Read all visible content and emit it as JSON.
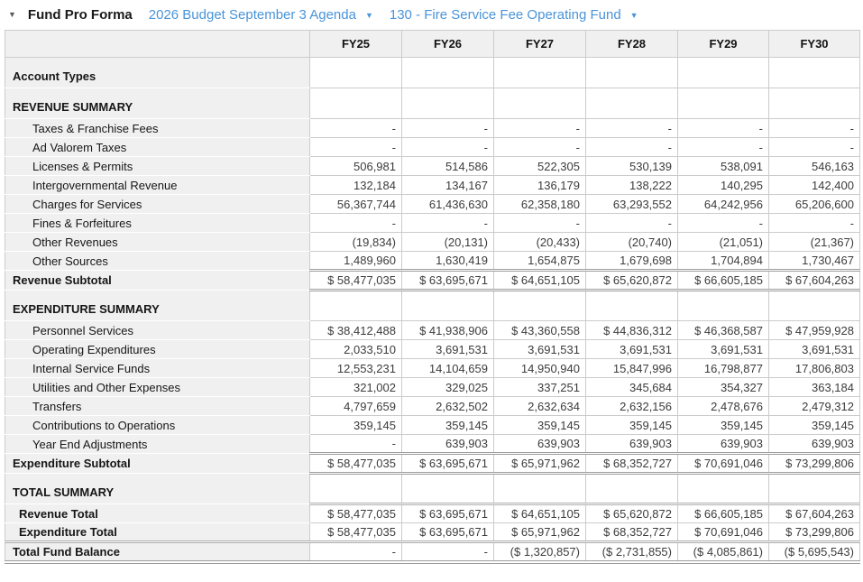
{
  "colors": {
    "link_blue": "#4a94d8",
    "header_bg": "#f0f0f0",
    "grid_border": "#cbcbcb",
    "emphasis_border": "#9d9d9d"
  },
  "icons": {
    "caret_down": "▼"
  },
  "toolbar": {
    "title": "Fund Pro Forma",
    "budget_dropdown": "2026 Budget September 3 Agenda",
    "fund_dropdown": "130 - Fire Service Fee Operating Fund"
  },
  "table": {
    "columns": [
      "FY25",
      "FY26",
      "FY27",
      "FY28",
      "FY29",
      "FY30"
    ],
    "rows": [
      {
        "type": "section",
        "label": "Account Types",
        "values": [
          "",
          "",
          "",
          "",
          "",
          ""
        ]
      },
      {
        "type": "section",
        "label": "REVENUE SUMMARY",
        "values": [
          "",
          "",
          "",
          "",
          "",
          ""
        ]
      },
      {
        "type": "detail",
        "label": "Taxes & Franchise Fees",
        "values": [
          "-",
          "-",
          "-",
          "-",
          "-",
          "-"
        ]
      },
      {
        "type": "detail",
        "label": "Ad Valorem Taxes",
        "values": [
          "-",
          "-",
          "-",
          "-",
          "-",
          "-"
        ]
      },
      {
        "type": "detail",
        "label": "Licenses & Permits",
        "values": [
          "506,981",
          "514,586",
          "522,305",
          "530,139",
          "538,091",
          "546,163"
        ]
      },
      {
        "type": "detail",
        "label": "Intergovernmental Revenue",
        "values": [
          "132,184",
          "134,167",
          "136,179",
          "138,222",
          "140,295",
          "142,400"
        ]
      },
      {
        "type": "detail",
        "label": "Charges for Services",
        "values": [
          "56,367,744",
          "61,436,630",
          "62,358,180",
          "63,293,552",
          "64,242,956",
          "65,206,600"
        ]
      },
      {
        "type": "detail",
        "label": "Fines & Forfeitures",
        "values": [
          "-",
          "-",
          "-",
          "-",
          "-",
          "-"
        ]
      },
      {
        "type": "detail",
        "label": "Other Revenues",
        "values": [
          "(19,834)",
          "(20,131)",
          "(20,433)",
          "(20,740)",
          "(21,051)",
          "(21,367)"
        ]
      },
      {
        "type": "detail",
        "label": "Other Sources",
        "values": [
          "1,489,960",
          "1,630,419",
          "1,654,875",
          "1,679,698",
          "1,704,894",
          "1,730,467"
        ]
      },
      {
        "type": "subtotal",
        "label": "Revenue Subtotal",
        "values": [
          "$ 58,477,035",
          "$ 63,695,671",
          "$ 64,651,105",
          "$ 65,620,872",
          "$ 66,605,185",
          "$ 67,604,263"
        ]
      },
      {
        "type": "section",
        "label": "EXPENDITURE SUMMARY",
        "values": [
          "",
          "",
          "",
          "",
          "",
          ""
        ]
      },
      {
        "type": "detail",
        "label": "Personnel Services",
        "values": [
          "$ 38,412,488",
          "$ 41,938,906",
          "$ 43,360,558",
          "$ 44,836,312",
          "$ 46,368,587",
          "$ 47,959,928"
        ]
      },
      {
        "type": "detail",
        "label": "Operating Expenditures",
        "values": [
          "2,033,510",
          "3,691,531",
          "3,691,531",
          "3,691,531",
          "3,691,531",
          "3,691,531"
        ]
      },
      {
        "type": "detail",
        "label": "Internal Service Funds",
        "values": [
          "12,553,231",
          "14,104,659",
          "14,950,940",
          "15,847,996",
          "16,798,877",
          "17,806,803"
        ]
      },
      {
        "type": "detail",
        "label": "Utilities and Other Expenses",
        "values": [
          "321,002",
          "329,025",
          "337,251",
          "345,684",
          "354,327",
          "363,184"
        ]
      },
      {
        "type": "detail",
        "label": "Transfers",
        "values": [
          "4,797,659",
          "2,632,502",
          "2,632,634",
          "2,632,156",
          "2,478,676",
          "2,479,312"
        ]
      },
      {
        "type": "detail",
        "label": "Contributions to Operations",
        "values": [
          "359,145",
          "359,145",
          "359,145",
          "359,145",
          "359,145",
          "359,145"
        ]
      },
      {
        "type": "detail",
        "label": "Year End Adjustments",
        "values": [
          "-",
          "639,903",
          "639,903",
          "639,903",
          "639,903",
          "639,903"
        ]
      },
      {
        "type": "subtotal",
        "label": "Expenditure Subtotal",
        "values": [
          "$ 58,477,035",
          "$ 63,695,671",
          "$ 65,971,962",
          "$ 68,352,727",
          "$ 70,691,046",
          "$ 73,299,806"
        ]
      },
      {
        "type": "section",
        "label": "TOTAL SUMMARY",
        "values": [
          "",
          "",
          "",
          "",
          "",
          ""
        ]
      },
      {
        "type": "total",
        "label": "Revenue Total",
        "values": [
          "$ 58,477,035",
          "$ 63,695,671",
          "$ 64,651,105",
          "$ 65,620,872",
          "$ 66,605,185",
          "$ 67,604,263"
        ]
      },
      {
        "type": "total",
        "label": "Expenditure Total",
        "values": [
          "$ 58,477,035",
          "$ 63,695,671",
          "$ 65,971,962",
          "$ 68,352,727",
          "$ 70,691,046",
          "$ 73,299,806"
        ]
      },
      {
        "type": "grandtotal",
        "label": "Total Fund Balance",
        "values": [
          "-",
          "-",
          "($ 1,320,857)",
          "($ 2,731,855)",
          "($ 4,085,861)",
          "($ 5,695,543)"
        ]
      }
    ]
  }
}
